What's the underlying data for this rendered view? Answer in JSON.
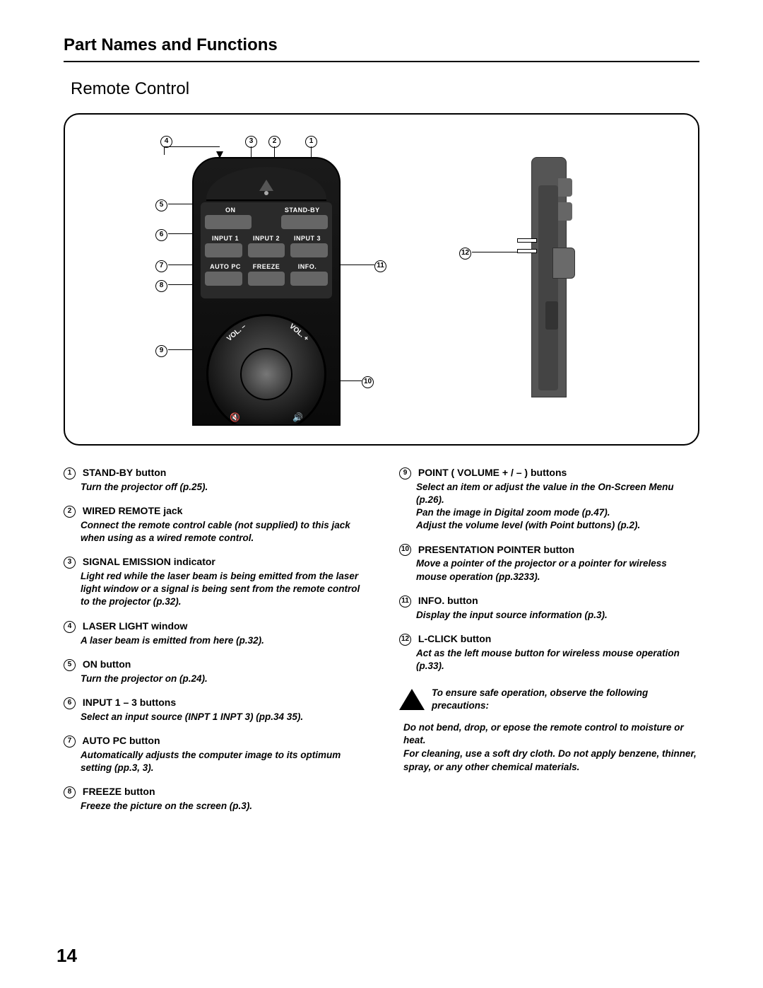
{
  "header": "Part Names and Functions",
  "subHeader": "Remote Control",
  "pageNumber": "14",
  "remoteLabels": {
    "on": "ON",
    "standby": "STAND-BY",
    "input1": "INPUT 1",
    "input2": "INPUT 2",
    "input3": "INPUT 3",
    "autopc": "AUTO PC",
    "freeze": "FREEZE",
    "info": "INFO.",
    "volMinus": "VOL. –",
    "volPlus": "VOL. +"
  },
  "numbers": {
    "n1": "1",
    "n2": "2",
    "n3": "3",
    "n4": "4",
    "n5": "5",
    "n6": "6",
    "n7": "7",
    "n8": "8",
    "n9": "9",
    "n10": "10",
    "n11": "11",
    "n12": "12"
  },
  "leftItems": [
    {
      "num": "1",
      "title": "STAND-BY button",
      "desc": "Turn the projector off (p.25)."
    },
    {
      "num": "2",
      "title": "WIRED REMOTE jack",
      "desc": "Connect the remote control cable (not supplied) to this jack when using as a wired remote control."
    },
    {
      "num": "3",
      "title": "SIGNAL EMISSION indicator",
      "desc": "Light red while the laser beam is being emitted from the laser light window or a signal is being sent from the remote control to the projector (p.32)."
    },
    {
      "num": "4",
      "title": "LASER LIGHT window",
      "desc": "A laser beam is emitted from here (p.32)."
    },
    {
      "num": "5",
      "title": "ON button",
      "desc": "Turn the projector on (p.24)."
    },
    {
      "num": "6",
      "title": "INPUT 1 – 3 buttons",
      "desc": "Select an input source (INPT 1  INPT 3) (pp.34  35)."
    },
    {
      "num": "7",
      "title": "AUTO PC button",
      "desc": "Automatically adjusts the computer image to its optimum setting (pp.3, 3)."
    },
    {
      "num": "8",
      "title": "FREEZE button",
      "desc": "Freeze the picture on the screen (p.3)."
    }
  ],
  "rightItems": [
    {
      "num": "9",
      "title": "POINT                   ( VOLUME + / – ) buttons",
      "desc": "Select an item or adjust the value in the On-Screen Menu (p.26).\nPan the image in Digital zoom  mode (p.47).\nAdjust the volume level (with Point               buttons) (p.2)."
    },
    {
      "num": "10",
      "title": "PRESENTATION POINTER button",
      "desc": "Move a pointer of the projector or a pointer for wireless mouse operation (pp.3233)."
    },
    {
      "num": "11",
      "title": "INFO. button",
      "desc": "Display the input source information (p.3)."
    },
    {
      "num": "12",
      "title": "L-CLICK button",
      "desc": "Act as the left mouse button for wireless mouse operation (p.33)."
    }
  ],
  "precautionLead": "To ensure safe operation, observe the following precautions:",
  "precautions": [
    "Do not bend, drop, or epose the remote control to moisture or heat.",
    "For cleaning, use a soft dry cloth. Do not apply benzene, thinner, spray, or any other chemical materials."
  ]
}
